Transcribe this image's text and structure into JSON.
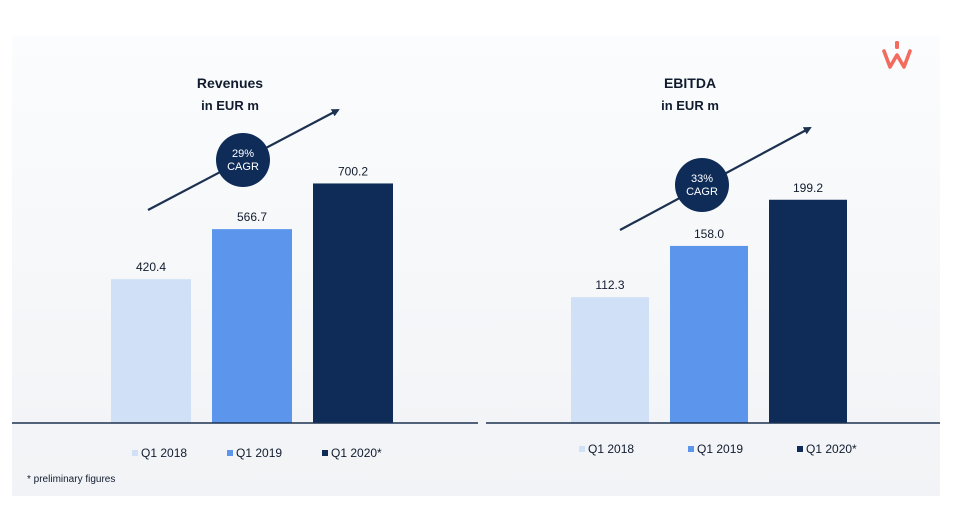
{
  "brand": {
    "logo": "w-logo",
    "accent": "#f36a5e"
  },
  "colors": {
    "q1_2018": "#cfe0f7",
    "q1_2019": "#5b95ec",
    "q1_2020": "#0f2c59",
    "circle": "#0f2c59",
    "axis": "#1c3150"
  },
  "chart_data": [
    {
      "type": "bar",
      "title": "Revenues",
      "subtitle": "in EUR m",
      "categories": [
        "Q1 2018",
        "Q1 2019",
        "Q1 2020*"
      ],
      "values": [
        420.4,
        566.7,
        700.2
      ],
      "value_labels": [
        "420.4",
        "566.7",
        "700.2"
      ],
      "ylim": [
        0,
        760
      ],
      "cagr": {
        "line1": "29%",
        "line2": "CAGR"
      },
      "legend": [
        "Q1 2018",
        "Q1 2019",
        "Q1 2020*"
      ],
      "legend_position": "bottom",
      "grid": false
    },
    {
      "type": "bar",
      "title": "EBITDA",
      "subtitle": "in EUR m",
      "categories": [
        "Q1 2018",
        "Q1 2019",
        "Q1 2020*"
      ],
      "values": [
        112.3,
        158.0,
        199.2
      ],
      "value_labels": [
        "112.3",
        "158.0",
        "199.2"
      ],
      "ylim": [
        0,
        232
      ],
      "cagr": {
        "line1": "33%",
        "line2": "CAGR"
      },
      "legend": [
        "Q1 2018",
        "Q1 2019",
        "Q1 2020*"
      ],
      "legend_position": "bottom",
      "grid": false
    }
  ],
  "footnote": "* preliminary figures"
}
